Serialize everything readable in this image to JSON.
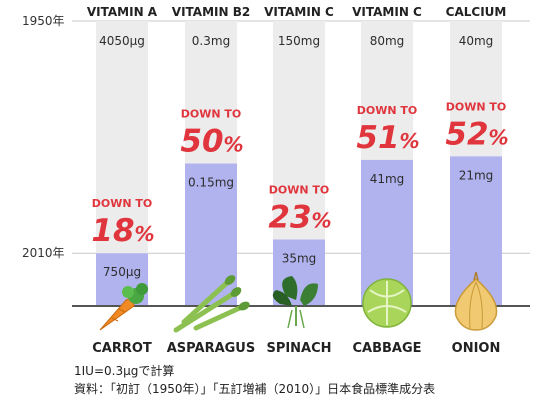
{
  "chart_data": {
    "type": "bar",
    "year_labels": {
      "top": "1950年",
      "bottom": "2010年"
    },
    "colors": {
      "old_bar": "#ececec",
      "new_bar": "#b1b3ef",
      "highlight": "#e0353d",
      "value_text": "#2d2d2d",
      "baseline": "#555555"
    },
    "categories": [
      "CARROT",
      "ASPARAGUS",
      "SPINACH",
      "CABBAGE",
      "ONION"
    ],
    "nutrients": [
      "VITAMIN A",
      "VITAMIN B2",
      "VITAMIN C",
      "VITAMIN C",
      "CALCIUM"
    ],
    "value_1950_labels": [
      "4050μg",
      "0.3mg",
      "150mg",
      "80mg",
      "40mg"
    ],
    "value_2010_labels": [
      "750μg",
      "0.15mg",
      "35mg",
      "41mg",
      "21mg"
    ],
    "value_1950": [
      4050,
      0.3,
      150,
      80,
      40
    ],
    "value_2010": [
      750,
      0.15,
      35,
      41,
      21
    ],
    "units": [
      "μg",
      "mg",
      "mg",
      "mg",
      "mg"
    ],
    "ratio_2010_percent": [
      18,
      50,
      23,
      51,
      52
    ],
    "down_to_label": "DOWN TO",
    "percent_sign": "%",
    "icons": [
      "carrot-icon",
      "asparagus-icon",
      "spinach-icon",
      "cabbage-icon",
      "onion-icon"
    ]
  },
  "notes": {
    "unit_note": "1IU=0.3μgで計算",
    "source_note": "資料：「初訂（1950年）」「五訂増補（2010）」日本食品標準成分表"
  }
}
